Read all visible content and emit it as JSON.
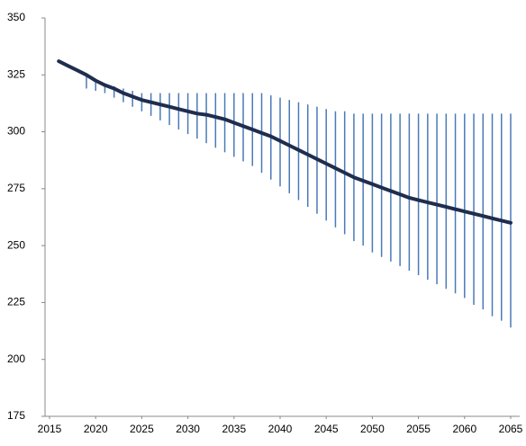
{
  "chart_data": {
    "type": "line-range",
    "x": [
      2016,
      2017,
      2018,
      2019,
      2020,
      2021,
      2022,
      2023,
      2024,
      2025,
      2026,
      2027,
      2028,
      2029,
      2030,
      2031,
      2032,
      2033,
      2034,
      2035,
      2036,
      2037,
      2038,
      2039,
      2040,
      2041,
      2042,
      2043,
      2044,
      2045,
      2046,
      2047,
      2048,
      2049,
      2050,
      2051,
      2052,
      2053,
      2054,
      2055,
      2056,
      2057,
      2058,
      2059,
      2060,
      2061,
      2062,
      2063,
      2064,
      2065
    ],
    "values": [
      331,
      329,
      327,
      325,
      322.5,
      320.5,
      319,
      317,
      315.5,
      314,
      313,
      312,
      311,
      310,
      309,
      308,
      307.5,
      306.5,
      305.5,
      304,
      302.5,
      301,
      299.5,
      298,
      296,
      294,
      292,
      290,
      288,
      286,
      284,
      282,
      280,
      278.5,
      277,
      275.5,
      274,
      272.5,
      271,
      270,
      269,
      268,
      267,
      266,
      265,
      264,
      263,
      262,
      261,
      260
    ],
    "high": [
      null,
      null,
      null,
      325,
      322,
      321,
      320,
      319,
      318,
      317,
      317,
      317,
      317,
      317,
      317,
      317,
      317,
      317,
      317,
      317,
      317,
      317,
      317,
      316,
      315,
      314,
      313,
      312,
      311,
      310,
      309,
      309,
      308,
      308,
      308,
      308,
      308,
      308,
      308,
      308,
      308,
      308,
      308,
      308,
      308,
      308,
      308,
      308,
      308,
      308
    ],
    "low": [
      null,
      null,
      null,
      319,
      318,
      317,
      315,
      313,
      311,
      309,
      307,
      305,
      303,
      301,
      299,
      297,
      295,
      293,
      291,
      289,
      287,
      285,
      282,
      279,
      276,
      273,
      270,
      267,
      264,
      261,
      258,
      255,
      252,
      250,
      247,
      245,
      243,
      241,
      239,
      237,
      235,
      233,
      231,
      229,
      227,
      224,
      222,
      219,
      217,
      214
    ],
    "color": "#1f2d4e",
    "range_color": "#4a7ab8",
    "xlim": [
      2015,
      2065
    ],
    "xticks": [
      2015,
      2020,
      2025,
      2030,
      2035,
      2040,
      2045,
      2050,
      2055,
      2060,
      2065
    ],
    "ylim": [
      175,
      350
    ],
    "yticks": [
      175,
      200,
      225,
      250,
      275,
      300,
      325,
      350
    ],
    "grid": false
  }
}
